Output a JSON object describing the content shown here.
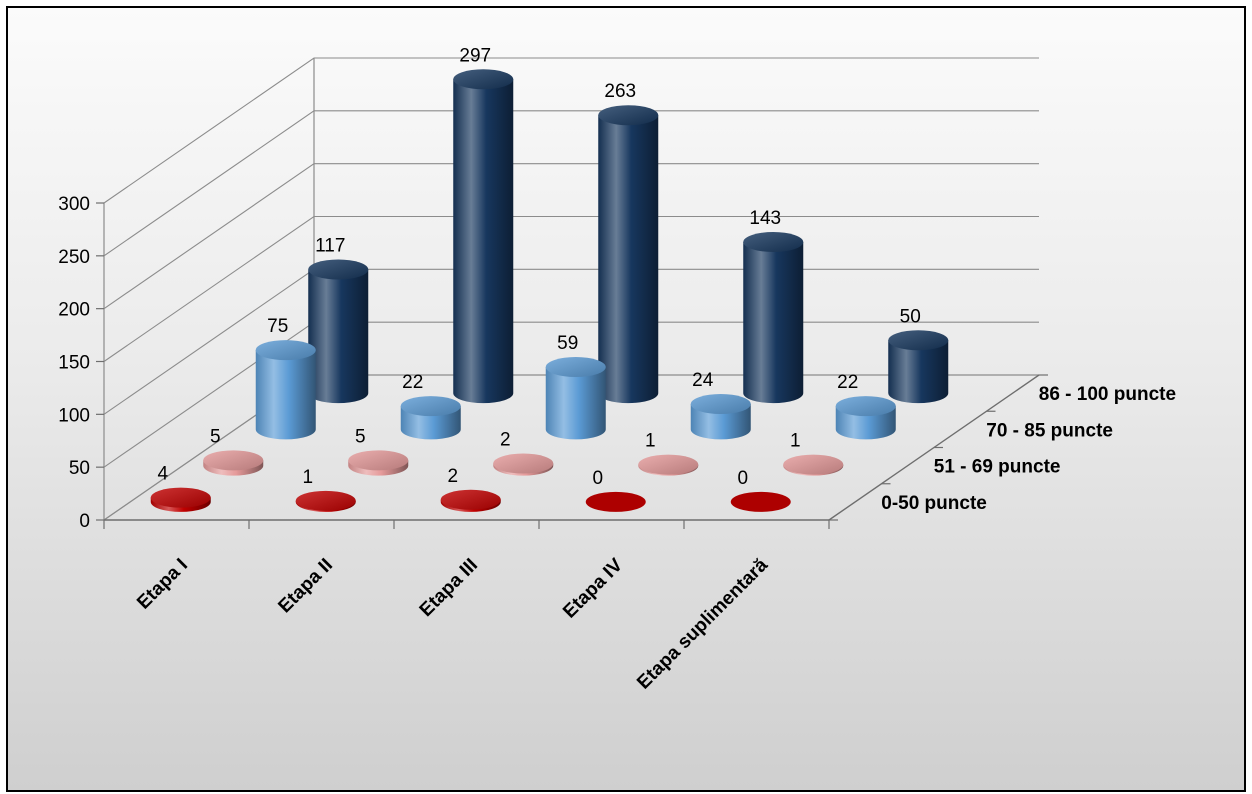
{
  "chart_data": {
    "type": "bar",
    "title": "",
    "categories": [
      "Etapa I",
      "Etapa II",
      "Etapa III",
      "Etapa IV",
      "Etapa suplimentară"
    ],
    "series": [
      {
        "name": "0-50 puncte",
        "values": [
          4,
          1,
          2,
          0,
          0
        ],
        "color": "#c00000"
      },
      {
        "name": "51 - 69 puncte",
        "values": [
          5,
          5,
          2,
          1,
          1
        ],
        "color": "#e59a9a"
      },
      {
        "name": "70 - 85 puncte",
        "values": [
          75,
          22,
          59,
          24,
          22
        ],
        "color": "#5b9bd5"
      },
      {
        "name": "86 - 100 puncte",
        "values": [
          117,
          297,
          263,
          143,
          50
        ],
        "color": "#17375e"
      }
    ],
    "y_ticks": [
      "0",
      "50",
      "100",
      "150",
      "200",
      "250",
      "300"
    ],
    "ylim": [
      0,
      300
    ],
    "grid": true,
    "legend": "series labels on right depth axis",
    "style": "3d-cylinder"
  }
}
